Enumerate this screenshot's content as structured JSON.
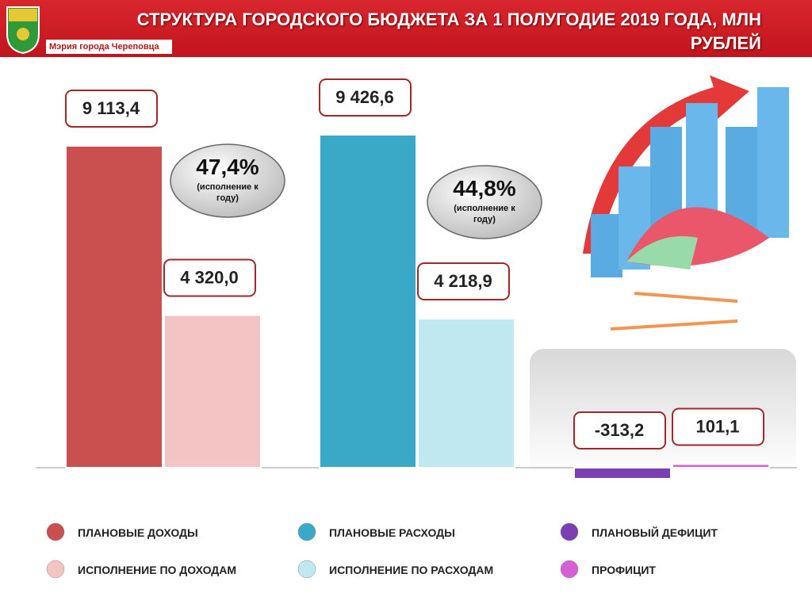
{
  "chart_data": {
    "type": "bar",
    "title": "СТРУКТУРА ГОРОДСКОГО БЮДЖЕТА ЗА 1 ПОЛУГОДИЕ 2019 ГОДА, МЛН РУБЛЕЙ",
    "organization": "Мэрия города Череповца",
    "series": [
      {
        "name": "ПЛАНОВЫЕ ДОХОДЫ",
        "color": "#c9504f",
        "values": [
          9113.4
        ],
        "value_labels": [
          "9 113,4"
        ]
      },
      {
        "name": "ИСПОЛНЕНИЕ ПО ДОХОДАМ",
        "color": "#f4c4c4",
        "values": [
          4320.0
        ],
        "value_labels": [
          "4 320,0"
        ]
      },
      {
        "name": "ПЛАНОВЫЕ РАСХОДЫ",
        "color": "#3aa9c7",
        "values": [
          9426.6
        ],
        "value_labels": [
          "9 426,6"
        ]
      },
      {
        "name": "ИСПОЛНЕНИЕ ПО РАСХОДАМ",
        "color": "#bfe8f0",
        "values": [
          4218.9
        ],
        "value_labels": [
          "4 218,9"
        ]
      },
      {
        "name": "ПЛАНОВЫЙ ДЕФИЦИТ",
        "color": "#7a3fb0",
        "values": [
          -313.2
        ],
        "value_labels": [
          "-313,2"
        ]
      },
      {
        "name": "ПРОФИЦИТ",
        "color": "#d65fd6",
        "values": [
          101.1
        ],
        "value_labels": [
          "101,1"
        ]
      }
    ],
    "annotations": [
      {
        "text": "47,4%",
        "note": "(исполнение к году)"
      },
      {
        "text": "44,8%",
        "note": "(исполнение к году)"
      }
    ]
  }
}
